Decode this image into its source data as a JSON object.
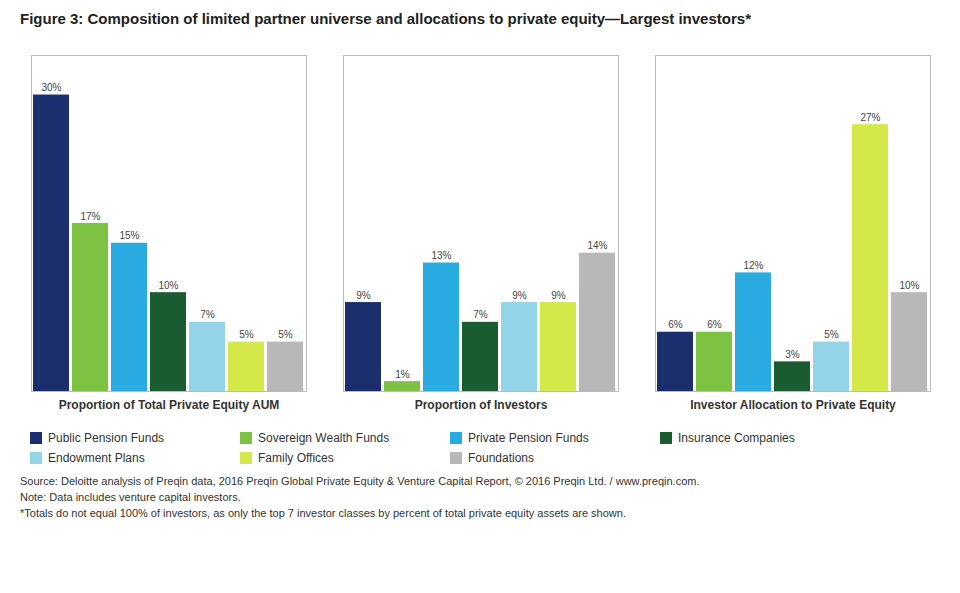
{
  "chart_data": {
    "type": "bar",
    "title": "Figure 3: Composition of limited partner universe and allocations to private equity—Largest investors*",
    "categories": [
      "Proportion of Total Private Equity AUM",
      "Proportion of Investors",
      "Investor Allocation to Private Equity"
    ],
    "series": [
      {
        "name": "Public Pension Funds",
        "color": "#1b2f6e",
        "values": [
          30,
          9,
          6
        ],
        "value_labels": [
          "30%",
          "9%",
          "6%"
        ]
      },
      {
        "name": "Sovereign Wealth Funds",
        "color": "#7dc242",
        "values": [
          17,
          1,
          6
        ],
        "value_labels": [
          "17%",
          "1%",
          "6%"
        ]
      },
      {
        "name": "Private Pension Funds",
        "color": "#29abe2",
        "values": [
          15,
          13,
          12
        ],
        "value_labels": [
          "15%",
          "13%",
          "12%"
        ]
      },
      {
        "name": "Insurance Companies",
        "color": "#1a5c30",
        "values": [
          10,
          7,
          3
        ],
        "value_labels": [
          "10%",
          "7%",
          "3%"
        ]
      },
      {
        "name": "Endowment Plans",
        "color": "#93d4e8",
        "values": [
          7,
          9,
          5
        ],
        "value_labels": [
          "7%",
          "9%",
          "5%"
        ]
      },
      {
        "name": "Family Offices",
        "color": "#d4e84a",
        "values": [
          5,
          9,
          27
        ],
        "value_labels": [
          "5%",
          "9%",
          "27%"
        ]
      },
      {
        "name": "Foundations",
        "color": "#b8b8b8",
        "values": [
          5,
          14,
          10
        ],
        "value_labels": [
          "5%",
          "14%",
          "10%"
        ]
      }
    ],
    "ylim": [
      0,
      34
    ],
    "tick_labels": "x",
    "data_labels": true,
    "grid": false,
    "legend": "bottom",
    "annotations": [
      "Source: Deloitte analysis of Preqin data, 2016 Preqin Global Private Equity & Venture Capital Report, © 2016 Preqin Ltd. / www.preqin.com.",
      "Note: Data includes venture capital investors.",
      "*Totals do not equal 100% of investors, as only the top 7 investor classes by percent of total private equity assets are shown."
    ]
  }
}
